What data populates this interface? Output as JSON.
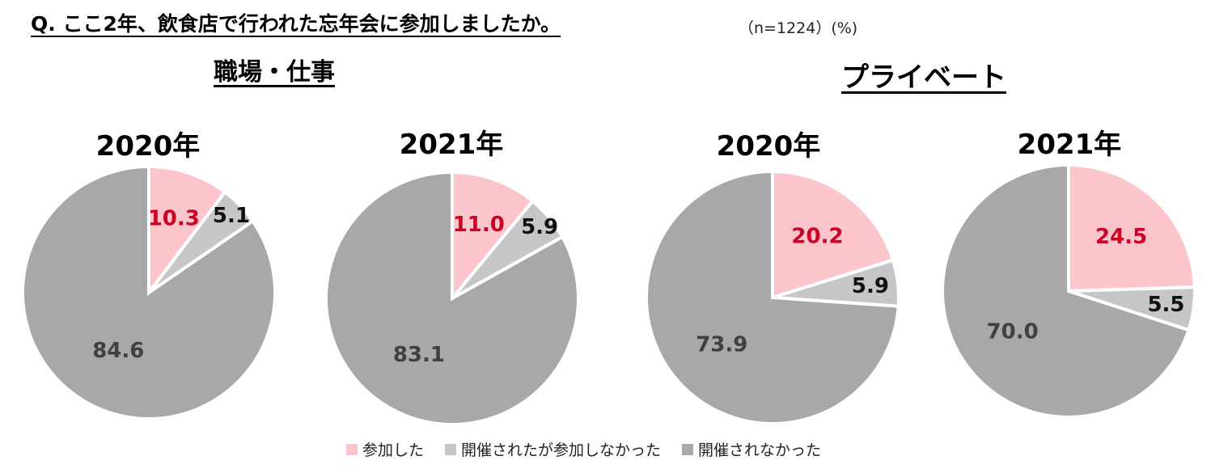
{
  "question": "Q. ここ2年、飲食店で行われた忘年会に参加しましたか。",
  "sample_note": "（n=1224）(%)",
  "groups": {
    "work": "職場・仕事",
    "private": "プライベート"
  },
  "colors": {
    "attended": "#fcc5cc",
    "held_not_attended": "#c6c6c6",
    "not_held": "#a8a8a8",
    "attended_label": "#cc0022",
    "other_label": "#111111",
    "not_held_label": "#404040"
  },
  "legend": [
    "参加した",
    "開催されたが参加しなかった",
    "開催されなかった"
  ],
  "chart_data": [
    {
      "type": "pie",
      "group": "職場・仕事",
      "title": "2020年",
      "labels": [
        "参加した",
        "開催されたが参加しなかった",
        "開催されなかった"
      ],
      "values": [
        10.3,
        5.1,
        84.6
      ],
      "value_labels": [
        "10.3",
        "5.1",
        "84.6"
      ]
    },
    {
      "type": "pie",
      "group": "職場・仕事",
      "title": "2021年",
      "labels": [
        "参加した",
        "開催されたが参加しなかった",
        "開催されなかった"
      ],
      "values": [
        11.0,
        5.9,
        83.1
      ],
      "value_labels": [
        "11.0",
        "5.9",
        "83.1"
      ]
    },
    {
      "type": "pie",
      "group": "プライベート",
      "title": "2020年",
      "labels": [
        "参加した",
        "開催されたが参加しなかった",
        "開催されなかった"
      ],
      "values": [
        20.2,
        5.9,
        73.9
      ],
      "value_labels": [
        "20.2",
        "5.9",
        "73.9"
      ]
    },
    {
      "type": "pie",
      "group": "プライベート",
      "title": "2021年",
      "labels": [
        "参加した",
        "開催されたが参加しなかった",
        "開催されなかった"
      ],
      "values": [
        24.5,
        5.5,
        70.0
      ],
      "value_labels": [
        "24.5",
        "5.5",
        "70.0"
      ]
    }
  ]
}
